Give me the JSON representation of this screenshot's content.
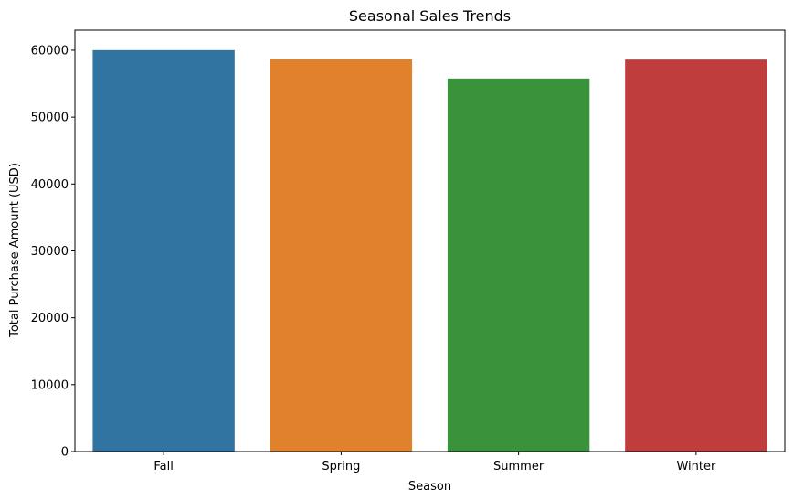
{
  "chart_data": {
    "type": "bar",
    "title": "Seasonal Sales Trends",
    "xlabel": "Season",
    "ylabel": "Total Purchase Amount (USD)",
    "categories": [
      "Fall",
      "Spring",
      "Summer",
      "Winter"
    ],
    "values": [
      60018,
      58679,
      55777,
      58607
    ],
    "colors": [
      "#3274a1",
      "#e1812c",
      "#3a923a",
      "#c03d3e"
    ],
    "ylim": [
      0,
      63000
    ],
    "yticks": [
      0,
      10000,
      20000,
      30000,
      40000,
      50000,
      60000
    ],
    "ytick_labels": [
      "0",
      "10000",
      "20000",
      "30000",
      "40000",
      "50000",
      "60000"
    ],
    "grid": false,
    "legend": "none"
  }
}
